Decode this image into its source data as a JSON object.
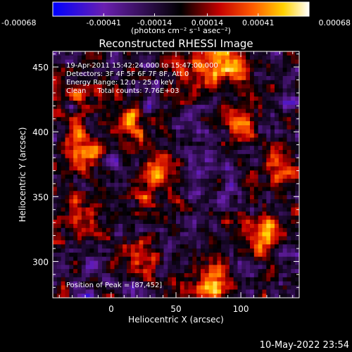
{
  "colorbar": {
    "tick_labels": [
      "-0.00068",
      "-0.00041",
      "-0.00014",
      "0.00014",
      "0.00041",
      "0.00068"
    ],
    "tick_values": [
      -0.00068,
      -0.00041,
      -0.00014,
      0.00014,
      0.00041,
      0.00068
    ],
    "range": [
      -0.00068,
      0.00068
    ],
    "unit_label": "(photons cm⁻² s⁻¹ asec⁻²)",
    "colors": [
      "#0000ff",
      "#6a1fb0",
      "#000000",
      "#c40000",
      "#ff5a00",
      "#ffd200",
      "#ffffff"
    ]
  },
  "chart_data": {
    "type": "heatmap",
    "title": "Reconstructed RHESSI Image",
    "xlabel": "Heliocentric X (arcsec)",
    "ylabel": "Heliocentric Y (arcsec)",
    "xlim": [
      -45,
      145
    ],
    "ylim": [
      272,
      462
    ],
    "x_ticks": [
      0,
      50,
      100
    ],
    "y_ticks": [
      300,
      350,
      400,
      450
    ],
    "x_tick_labels": [
      "0",
      "50",
      "100"
    ],
    "y_tick_labels": [
      "300",
      "350",
      "400",
      "450"
    ],
    "annotations": {
      "time": "19-Apr-2011 15:42:24.000 to 15:47:00.000",
      "detectors": "Detectors: 3F 4F 5F 6F 7F 8F, Att 0",
      "energy": "Energy Range: 12.0 - 25.0 keV",
      "clean": "Clean     Total counts: 7.76E+03",
      "peak": "Position of Peak = [87,452]"
    },
    "peak": [
      87,
      452
    ],
    "bright_regions": [
      {
        "x": 35,
        "y": 362,
        "level": 0.00055
      },
      {
        "x": 87,
        "y": 452,
        "level": 0.00068
      },
      {
        "x": 80,
        "y": 282,
        "level": 0.00055
      },
      {
        "x": 115,
        "y": 318,
        "level": 0.0005
      },
      {
        "x": -20,
        "y": 388,
        "level": 0.0005
      },
      {
        "x": 15,
        "y": 405,
        "level": 0.00045
      },
      {
        "x": 60,
        "y": 445,
        "level": 0.00045
      },
      {
        "x": 100,
        "y": 410,
        "level": 0.00045
      },
      {
        "x": -25,
        "y": 335,
        "level": 0.00035
      },
      {
        "x": 130,
        "y": 375,
        "level": 0.0004
      },
      {
        "x": 20,
        "y": 300,
        "level": 0.00035
      },
      {
        "x": -20,
        "y": 430,
        "level": 0.00035
      }
    ]
  },
  "footer": {
    "timestamp": "10-May-2022 23:54"
  }
}
